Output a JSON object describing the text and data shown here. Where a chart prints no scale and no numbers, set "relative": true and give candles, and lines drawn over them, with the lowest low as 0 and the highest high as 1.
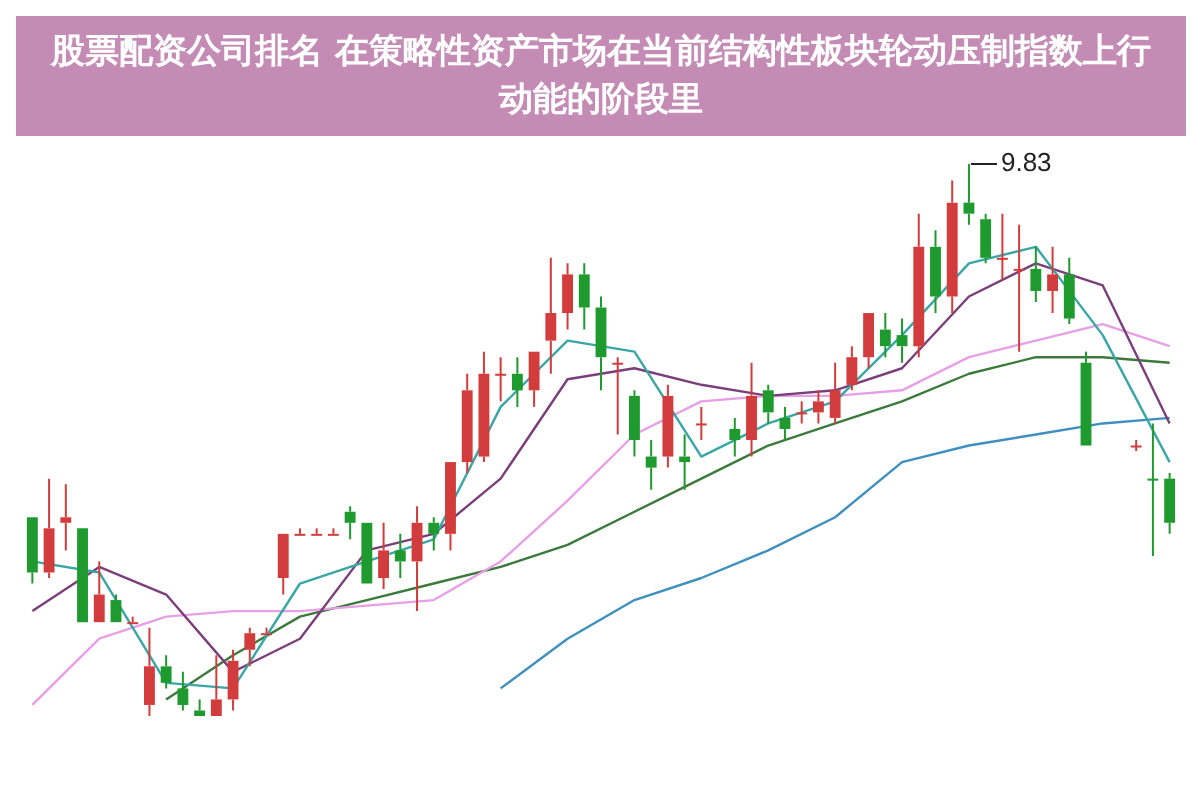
{
  "chart_data": {
    "type": "candlestick",
    "title": "股票配资公司排名 在策略性资产市场在当前结构性板块轮动压制指数上行动能的阶段里",
    "relative": true,
    "marker": "none",
    "categories": [
      null,
      null,
      null,
      null,
      null,
      null,
      null,
      null,
      null,
      null,
      null,
      null,
      null,
      null,
      null,
      null,
      null,
      null,
      null,
      null,
      null,
      null,
      null,
      null,
      null,
      null,
      null,
      null,
      null,
      null,
      null,
      null,
      null,
      null,
      null,
      null,
      null,
      null,
      null,
      null,
      null,
      null,
      null,
      null,
      null,
      null,
      null,
      null,
      null,
      null,
      null,
      null,
      null,
      null,
      null,
      null,
      null,
      null,
      null,
      null,
      null,
      null,
      null,
      null,
      null,
      null,
      null,
      null,
      null
    ],
    "ohlc": [
      [
        0.36,
        0.36,
        0.24,
        0.26
      ],
      [
        0.26,
        0.43,
        0.25,
        0.34
      ],
      [
        0.35,
        0.42,
        0.3,
        0.36
      ],
      [
        0.34,
        0.34,
        0.17,
        0.17
      ],
      [
        0.17,
        0.28,
        0.17,
        0.22
      ],
      [
        0.21,
        0.22,
        0.17,
        0.17
      ],
      [
        0.17,
        0.18,
        0.17,
        0.17
      ],
      [
        0.02,
        0.16,
        0,
        0.09
      ],
      [
        0.09,
        0.11,
        0.05,
        0.06
      ],
      [
        0.05,
        0.08,
        0.01,
        0.02
      ],
      [
        0.01,
        0.03,
        0,
        0
      ],
      [
        0,
        0.11,
        0,
        0.03
      ],
      [
        0.03,
        0.12,
        0.01,
        0.1
      ],
      [
        0.12,
        0.16,
        0.09,
        0.15
      ],
      [
        0.15,
        0.16,
        0.15,
        0.15
      ],
      [
        0.25,
        0.33,
        0.22,
        0.33
      ],
      [
        0.33,
        0.34,
        0.33,
        0.33
      ],
      [
        0.33,
        0.34,
        0.33,
        0.33
      ],
      [
        0.33,
        0.34,
        0.33,
        0.33
      ],
      [
        0.37,
        0.38,
        0.32,
        0.35
      ],
      [
        0.35,
        0.35,
        0.24,
        0.24
      ],
      [
        0.25,
        0.35,
        0.23,
        0.3
      ],
      [
        0.3,
        0.33,
        0.25,
        0.28
      ],
      [
        0.28,
        0.38,
        0.19,
        0.35
      ],
      [
        0.35,
        0.36,
        0.3,
        0.33
      ],
      [
        0.33,
        0.46,
        0.3,
        0.46
      ],
      [
        0.46,
        0.62,
        0.44,
        0.59
      ],
      [
        0.47,
        0.66,
        0.46,
        0.62
      ],
      [
        0.62,
        0.65,
        0.57,
        0.62
      ],
      [
        0.62,
        0.65,
        0.56,
        0.59
      ],
      [
        0.59,
        0.66,
        0.56,
        0.66
      ],
      [
        0.68,
        0.83,
        0.62,
        0.73
      ],
      [
        0.73,
        0.82,
        0.7,
        0.8
      ],
      [
        0.8,
        0.82,
        0.7,
        0.74
      ],
      [
        0.74,
        0.76,
        0.59,
        0.65
      ],
      [
        0.64,
        0.65,
        0.51,
        0.64
      ],
      [
        0.58,
        0.59,
        0.47,
        0.5
      ],
      [
        0.47,
        0.5,
        0.41,
        0.45
      ],
      [
        0.47,
        0.6,
        0.45,
        0.58
      ],
      [
        0.47,
        0.51,
        0.41,
        0.46
      ],
      [
        0.53,
        0.56,
        0.5,
        0.53
      ],
      null,
      [
        0.52,
        0.54,
        0.47,
        0.5
      ],
      [
        0.5,
        0.64,
        0.47,
        0.58
      ],
      [
        0.59,
        0.6,
        0.53,
        0.55
      ],
      [
        0.54,
        0.56,
        0.5,
        0.52
      ],
      [
        0.55,
        0.57,
        0.53,
        0.55
      ],
      [
        0.55,
        0.59,
        0.53,
        0.57
      ],
      [
        0.54,
        0.64,
        0.53,
        0.59
      ],
      [
        0.6,
        0.67,
        0.59,
        0.65
      ],
      [
        0.65,
        0.73,
        0.63,
        0.73
      ],
      [
        0.7,
        0.73,
        0.65,
        0.67
      ],
      [
        0.69,
        0.72,
        0.64,
        0.67
      ],
      [
        0.67,
        0.91,
        0.65,
        0.85
      ],
      [
        0.85,
        0.88,
        0.73,
        0.76
      ],
      [
        0.76,
        0.97,
        0.73,
        0.93
      ],
      [
        0.93,
        1,
        0.89,
        0.91
      ],
      [
        0.9,
        0.91,
        0.82,
        0.83
      ],
      [
        0.83,
        0.91,
        0.79,
        0.83
      ],
      [
        0.81,
        0.89,
        0.66,
        0.81
      ],
      [
        0.81,
        0.85,
        0.75,
        0.77
      ],
      [
        0.77,
        0.85,
        0.73,
        0.8
      ],
      [
        0.8,
        0.83,
        0.71,
        0.72
      ],
      [
        0.64,
        0.66,
        0.49,
        0.49
      ],
      null,
      null,
      [
        0.49,
        0.5,
        0.48,
        0.49
      ],
      [
        0.43,
        0.53,
        0.29,
        0.43
      ],
      [
        0.43,
        0.44,
        0.33,
        0.35
      ]
    ],
    "colors": [
      "#1e9a2e",
      "#d23c3c",
      "#d23c3c",
      "#1e9a2e",
      "#d23c3c",
      "#1e9a2e",
      "#d23c3c",
      "#d23c3c",
      "#1e9a2e",
      "#1e9a2e",
      "#1e9a2e",
      "#d23c3c",
      "#d23c3c",
      "#d23c3c",
      "#d23c3c",
      "#d23c3c",
      "#d23c3c",
      "#d23c3c",
      "#d23c3c",
      "#1e9a2e",
      "#1e9a2e",
      "#d23c3c",
      "#1e9a2e",
      "#d23c3c",
      "#1e9a2e",
      "#d23c3c",
      "#d23c3c",
      "#d23c3c",
      "#d23c3c",
      "#1e9a2e",
      "#d23c3c",
      "#d23c3c",
      "#d23c3c",
      "#1e9a2e",
      "#1e9a2e",
      "#d23c3c",
      "#1e9a2e",
      "#1e9a2e",
      "#d23c3c",
      "#1e9a2e",
      "#d23c3c",
      null,
      "#1e9a2e",
      "#d23c3c",
      "#1e9a2e",
      "#1e9a2e",
      "#d23c3c",
      "#d23c3c",
      "#d23c3c",
      "#d23c3c",
      "#d23c3c",
      "#1e9a2e",
      "#1e9a2e",
      "#d23c3c",
      "#1e9a2e",
      "#d23c3c",
      "#1e9a2e",
      "#1e9a2e",
      "#d23c3c",
      "#d23c3c",
      "#1e9a2e",
      "#d23c3c",
      "#1e9a2e",
      "#1e9a2e",
      null,
      null,
      "#d23c3c",
      "#1e9a2e",
      "#1e9a2e"
    ],
    "series": [
      {
        "type": "line",
        "color": "#3aa6a6",
        "values": [
          0.28,
          null,
          null,
          null,
          0.26,
          null,
          null,
          null,
          0.06,
          null,
          null,
          null,
          0.05,
          null,
          null,
          null,
          0.24,
          null,
          null,
          null,
          0.28,
          null,
          null,
          null,
          0.32,
          null,
          null,
          null,
          0.56,
          null,
          null,
          null,
          0.68,
          null,
          null,
          null,
          0.66,
          null,
          null,
          null,
          0.47,
          null,
          null,
          null,
          0.53,
          null,
          null,
          null,
          0.57,
          null,
          null,
          null,
          0.69,
          null,
          null,
          null,
          0.82,
          null,
          null,
          null,
          0.85,
          null,
          null,
          null,
          0.69,
          null,
          null,
          null,
          0.46
        ]
      },
      {
        "type": "line",
        "color": "#7a3f7a",
        "values": [
          0.19,
          null,
          null,
          null,
          0.27,
          null,
          null,
          null,
          0.22,
          null,
          null,
          null,
          0.08,
          null,
          null,
          null,
          0.14,
          null,
          null,
          null,
          0.3,
          null,
          null,
          null,
          0.33,
          null,
          null,
          null,
          0.43,
          null,
          null,
          null,
          0.61,
          null,
          null,
          null,
          0.63,
          null,
          null,
          null,
          0.6,
          null,
          null,
          null,
          0.58,
          null,
          null,
          null,
          0.59,
          null,
          null,
          null,
          0.63,
          null,
          null,
          null,
          0.76,
          null,
          null,
          null,
          0.82,
          null,
          null,
          null,
          0.78,
          null,
          null,
          null,
          0.53
        ]
      },
      {
        "type": "line",
        "color": "#e7a0e7",
        "values": [
          0.02,
          null,
          null,
          null,
          0.14,
          null,
          null,
          null,
          0.18,
          null,
          null,
          null,
          0.19,
          null,
          null,
          null,
          0.19,
          null,
          null,
          null,
          0.2,
          null,
          null,
          null,
          0.21,
          null,
          null,
          null,
          0.28,
          null,
          null,
          null,
          0.39,
          null,
          null,
          null,
          0.51,
          null,
          null,
          null,
          0.57,
          null,
          null,
          null,
          0.58,
          null,
          null,
          null,
          0.58,
          null,
          null,
          null,
          0.59,
          null,
          null,
          null,
          0.65,
          null,
          null,
          null,
          0.68,
          null,
          null,
          null,
          0.71,
          null,
          null,
          null,
          0.67
        ]
      },
      {
        "type": "line",
        "color": "#3c7a3c",
        "values": [
          null,
          null,
          null,
          null,
          null,
          null,
          null,
          null,
          0.03,
          null,
          null,
          null,
          0.11,
          null,
          null,
          null,
          0.18,
          null,
          null,
          null,
          0.21,
          null,
          null,
          null,
          0.24,
          null,
          null,
          null,
          0.27,
          null,
          null,
          null,
          0.31,
          null,
          null,
          null,
          0.37,
          null,
          null,
          null,
          0.43,
          null,
          null,
          null,
          0.49,
          null,
          null,
          null,
          0.53,
          null,
          null,
          null,
          0.57,
          null,
          null,
          null,
          0.62,
          null,
          null,
          null,
          0.65,
          null,
          null,
          null,
          0.65,
          null,
          null,
          null,
          0.64
        ]
      },
      {
        "type": "line",
        "color": "#3f8fbf",
        "values": [
          null,
          null,
          null,
          null,
          null,
          null,
          null,
          null,
          null,
          null,
          null,
          null,
          null,
          null,
          null,
          null,
          null,
          null,
          null,
          null,
          null,
          null,
          null,
          null,
          null,
          null,
          null,
          null,
          0.05,
          null,
          null,
          null,
          0.14,
          null,
          null,
          null,
          0.21,
          null,
          null,
          null,
          0.25,
          null,
          null,
          null,
          0.3,
          null,
          null,
          null,
          0.36,
          null,
          null,
          null,
          0.46,
          null,
          null,
          null,
          0.49,
          null,
          null,
          null,
          0.51,
          null,
          null,
          null,
          0.53,
          null,
          null,
          null,
          0.54
        ]
      }
    ],
    "annotations": [
      "9.83"
    ]
  }
}
